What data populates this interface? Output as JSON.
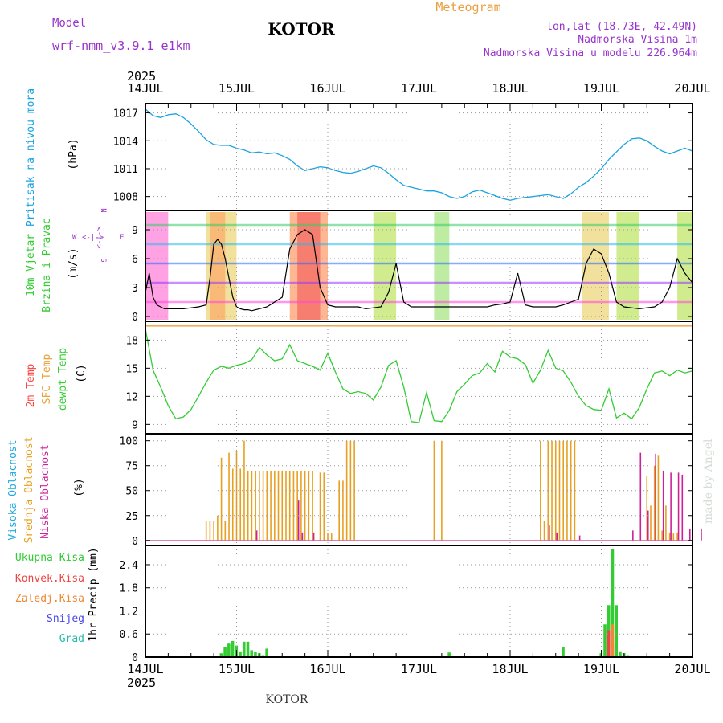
{
  "header": {
    "model_label": "Model",
    "model_name": "wrf-nmm_v3.9.1 e1km",
    "station": "KOTOR",
    "product": "Meteogram",
    "lonlat": "lon,lat (18.73E, 42.49N)",
    "elevation": "Nadmorska Visina 1m",
    "model_elevation": "Nadmorska Visina u modelu 226.964m",
    "footer_station": "KOTOR",
    "credit": "made by Angel"
  },
  "time_axis": {
    "year": "2025",
    "ticks": [
      "14JUL",
      "15JUL",
      "16JUL",
      "17JUL",
      "18JUL",
      "19JUL",
      "20JUL"
    ]
  },
  "panels": {
    "pressure": {
      "name": "Pritisak na nivou mora",
      "unit": "(hPa)",
      "ticks": [
        "1008",
        "1011",
        "1014",
        "1017"
      ]
    },
    "wind": {
      "name1": "10m Vjetar",
      "name2": "Brzina i Pravac",
      "unit": "(m/s)",
      "ticks": [
        "0",
        "3",
        "6",
        "9"
      ],
      "compass_n": "N",
      "compass_w": "W",
      "compass_e": "E",
      "compass_s": "S",
      "compass_line1": "<-|->",
      "compass_line2": "<-|->"
    },
    "temp": {
      "name1": "2m Temp",
      "name2": "SFC Temp",
      "name3": "dewpt Temp",
      "unit": "(C)",
      "ticks": [
        "9",
        "12",
        "15",
        "18"
      ]
    },
    "cloud": {
      "name1": "Visoka Oblacnost",
      "name2": "Srednja Oblacnost",
      "name3": "Niska Oblacnost",
      "unit": "(%)",
      "ticks": [
        "0",
        "25",
        "50",
        "75",
        "100"
      ]
    },
    "precip": {
      "legend": [
        "Ukupna Kisa",
        "Konvek.Kisa",
        "Zaledj.Kisa",
        "Snijeg",
        "Grad"
      ],
      "unit": "1hr Precip (mm)",
      "ticks": [
        "0",
        "0.6",
        "1.2",
        "1.8",
        "2.4"
      ]
    }
  },
  "colors": {
    "pressure": "#1aa3e0",
    "dewpoint": "#33cc33",
    "sfc": "#e8a33a",
    "t2m": "#ff4444",
    "high_cloud": "#22aadd",
    "mid_cloud": "#e8a020",
    "low_cloud": "#cc2299",
    "total_rain": "#33cc33",
    "conv_rain": "#ee4444",
    "frz_rain": "#ee8833",
    "snow": "#4444ee",
    "hail": "#22bbaa",
    "title_purple": "#9933cc",
    "meteogram_orange": "#e8a040"
  },
  "chart_data": [
    {
      "type": "line",
      "title": "Pritisak na nivou mora",
      "ylabel": "(hPa)",
      "ylim": [
        1006.5,
        1018
      ],
      "x_unit": "hours since 14JUL 00UTC",
      "x": [
        0,
        2,
        4,
        6,
        8,
        10,
        12,
        14,
        16,
        18,
        20,
        22,
        24,
        26,
        28,
        30,
        32,
        34,
        36,
        38,
        40,
        42,
        44,
        46,
        48,
        50,
        52,
        54,
        56,
        58,
        60,
        62,
        64,
        66,
        68,
        70,
        72,
        74,
        76,
        78,
        80,
        82,
        84,
        86,
        88,
        90,
        92,
        94,
        96,
        98,
        100,
        102,
        104,
        106,
        108,
        110,
        112,
        114,
        116,
        118,
        120,
        122,
        124,
        126,
        128,
        130,
        132,
        134,
        136,
        138,
        140,
        142,
        144
      ],
      "series": [
        {
          "values": [
            1017.4,
            1016.7,
            1016.5,
            1016.8,
            1016.9,
            1016.5,
            1015.8,
            1015.0,
            1014.1,
            1013.6,
            1013.5,
            1013.5,
            1013.2,
            1013.0,
            1012.7,
            1012.8,
            1012.6,
            1012.7,
            1012.4,
            1012.0,
            1011.3,
            1010.8,
            1011.0,
            1011.2,
            1011.1,
            1010.8,
            1010.6,
            1010.5,
            1010.7,
            1011.0,
            1011.3,
            1011.1,
            1010.5,
            1009.8,
            1009.2,
            1009.0,
            1008.8,
            1008.6,
            1008.6,
            1008.4,
            1008.0,
            1007.8,
            1008.0,
            1008.5,
            1008.7,
            1008.4,
            1008.1,
            1007.8,
            1007.6,
            1007.8,
            1007.9,
            1008.0,
            1008.1,
            1008.2,
            1008.0,
            1007.8,
            1008.3,
            1009.0,
            1009.5,
            1010.2,
            1011.0,
            1012.0,
            1012.8,
            1013.6,
            1014.2,
            1014.3,
            1014.0,
            1013.4,
            1012.9,
            1012.6,
            1012.9,
            1013.2,
            1012.9
          ]
        }
      ]
    },
    {
      "type": "line",
      "title": "10m Vjetar Brzina i Pravac",
      "ylabel": "(m/s)",
      "ylim": [
        -0.5,
        11
      ],
      "x_unit": "hours since 14JUL 00UTC",
      "x": [
        0,
        1,
        2,
        3,
        4,
        5,
        6,
        8,
        10,
        12,
        14,
        16,
        17,
        18,
        19,
        20,
        21,
        22,
        23,
        24,
        25,
        26,
        27,
        28,
        30,
        32,
        34,
        36,
        38,
        40,
        42,
        44,
        46,
        48,
        50,
        52,
        54,
        56,
        58,
        60,
        62,
        64,
        66,
        68,
        70,
        72,
        74,
        76,
        78,
        80,
        82,
        84,
        86,
        88,
        90,
        92,
        94,
        96,
        98,
        100,
        102,
        104,
        106,
        108,
        110,
        112,
        114,
        116,
        118,
        120,
        122,
        124,
        126,
        128,
        130,
        132,
        134,
        136,
        138,
        140,
        142,
        144
      ],
      "series": [
        {
          "name": "wind speed",
          "values": [
            2.5,
            4.5,
            2.0,
            1.2,
            1.0,
            0.8,
            0.8,
            0.8,
            0.8,
            0.9,
            1.0,
            1.2,
            4.0,
            7.5,
            8.0,
            7.5,
            6.0,
            4.0,
            2.0,
            1.0,
            0.8,
            0.7,
            0.7,
            0.6,
            0.8,
            1.0,
            1.5,
            2.0,
            7.0,
            8.5,
            9.0,
            8.5,
            3.0,
            1.2,
            1.0,
            1.0,
            1.0,
            1.0,
            0.8,
            0.9,
            1.0,
            2.5,
            5.5,
            1.5,
            1.0,
            1.0,
            1.0,
            1.0,
            1.0,
            1.0,
            1.0,
            1.0,
            1.0,
            1.0,
            1.0,
            1.2,
            1.3,
            1.5,
            4.5,
            1.2,
            1.0,
            1.0,
            1.0,
            1.0,
            1.2,
            1.5,
            1.8,
            5.5,
            7.0,
            6.5,
            4.5,
            1.5,
            1.0,
            0.9,
            0.8,
            0.9,
            1.0,
            1.5,
            3.0,
            6.0,
            4.5,
            3.5
          ]
        }
      ]
    },
    {
      "type": "line",
      "title": "dewpt Temp",
      "ylabel": "(C)",
      "ylim": [
        8,
        20
      ],
      "x_unit": "hours since 14JUL 00UTC",
      "x": [
        0,
        2,
        4,
        6,
        8,
        10,
        12,
        14,
        16,
        18,
        20,
        22,
        24,
        26,
        28,
        30,
        32,
        34,
        36,
        38,
        40,
        42,
        44,
        46,
        48,
        50,
        52,
        54,
        56,
        58,
        60,
        62,
        64,
        66,
        68,
        70,
        72,
        74,
        76,
        78,
        80,
        82,
        84,
        86,
        88,
        90,
        92,
        94,
        96,
        98,
        100,
        102,
        104,
        106,
        108,
        110,
        112,
        114,
        116,
        118,
        120,
        122,
        124,
        126,
        128,
        130,
        132,
        134,
        136,
        138,
        140,
        142,
        144
      ],
      "series": [
        {
          "name": "dewpt Temp",
          "values": [
            19.2,
            14.8,
            13.0,
            11.0,
            9.6,
            9.8,
            10.6,
            12.0,
            13.5,
            14.8,
            15.2,
            15.0,
            15.3,
            15.5,
            15.9,
            17.2,
            16.4,
            15.8,
            16.0,
            17.5,
            15.8,
            15.5,
            15.2,
            14.8,
            16.6,
            14.6,
            12.8,
            12.3,
            12.5,
            12.3,
            11.6,
            13.0,
            15.3,
            15.8,
            13.0,
            9.3,
            9.2,
            12.4,
            9.4,
            9.3,
            10.5,
            12.5,
            13.3,
            14.2,
            14.5,
            15.5,
            14.6,
            16.8,
            16.2,
            16.0,
            15.4,
            13.4,
            14.8,
            16.9,
            15.0,
            14.7,
            13.5,
            12.0,
            11.0,
            10.6,
            10.5,
            12.8,
            9.7,
            10.2,
            9.6,
            10.8,
            12.8,
            14.5,
            14.7,
            14.2,
            14.8,
            14.5,
            14.7
          ]
        }
      ],
      "constant_lines": [
        {
          "name": "SFC Temp",
          "value": 19.5
        }
      ]
    },
    {
      "type": "bar",
      "title": "Oblacnost",
      "ylabel": "(%)",
      "ylim": [
        0,
        100
      ],
      "x_unit": "hours since 14JUL 00UTC",
      "series": [
        {
          "name": "Srednja Oblacnost",
          "x": [
            16,
            17,
            18,
            19,
            20,
            21,
            22,
            23,
            24,
            25,
            26,
            27,
            28,
            29,
            30,
            31,
            32,
            33,
            34,
            35,
            36,
            37,
            38,
            39,
            40,
            41,
            42,
            43,
            44,
            46,
            47,
            48,
            49,
            51,
            52,
            53,
            54,
            55,
            76,
            78,
            104,
            105,
            106,
            107,
            108,
            109,
            110,
            111,
            112,
            113,
            132,
            133,
            134,
            135,
            136,
            137,
            138,
            139,
            140
          ],
          "values": [
            20,
            20,
            20,
            25,
            83,
            20,
            88,
            72,
            90,
            72,
            100,
            70,
            70,
            70,
            70,
            70,
            70,
            70,
            70,
            70,
            70,
            70,
            70,
            70,
            70,
            70,
            70,
            70,
            70,
            68,
            68,
            7,
            7,
            60,
            60,
            100,
            100,
            100,
            100,
            100,
            100,
            20,
            100,
            100,
            100,
            100,
            100,
            100,
            100,
            100,
            65,
            35,
            75,
            85,
            10,
            35,
            8,
            7,
            8
          ]
        },
        {
          "name": "Niska Oblacnost",
          "x": [
            29,
            40,
            41,
            44,
            106,
            108,
            114,
            128,
            130,
            132,
            134,
            136,
            138,
            140,
            141,
            143,
            146
          ],
          "values": [
            10,
            40,
            8,
            8,
            15,
            8,
            5,
            10,
            88,
            30,
            87,
            70,
            68,
            68,
            66,
            12,
            12
          ]
        }
      ]
    },
    {
      "type": "bar",
      "title": "1hr Precip",
      "ylabel": "1hr Precip (mm)",
      "ylim": [
        0,
        2.9
      ],
      "x_unit": "hours since 14JUL 00UTC",
      "series": [
        {
          "name": "Ukupna Kisa",
          "x": [
            20,
            21,
            22,
            23,
            24,
            25,
            26,
            27,
            28,
            29,
            30,
            31,
            32,
            80,
            110,
            120,
            121,
            122,
            123,
            124,
            125,
            126,
            127,
            128,
            129,
            130
          ],
          "values": [
            0.1,
            0.25,
            0.35,
            0.42,
            0.3,
            0.15,
            0.4,
            0.4,
            0.18,
            0.14,
            0.1,
            0.05,
            0.22,
            0.12,
            0.25,
            0.1,
            0.85,
            1.35,
            2.8,
            1.35,
            0.15,
            0.1,
            0.05,
            0.03,
            0.02,
            0.01
          ]
        },
        {
          "name": "Konvek.Kisa",
          "x": [
            122,
            123
          ],
          "values": [
            0.7,
            0.35
          ]
        },
        {
          "name": "Zaledj.Kisa",
          "x": [
            123
          ],
          "values": [
            0.85
          ]
        }
      ]
    }
  ]
}
